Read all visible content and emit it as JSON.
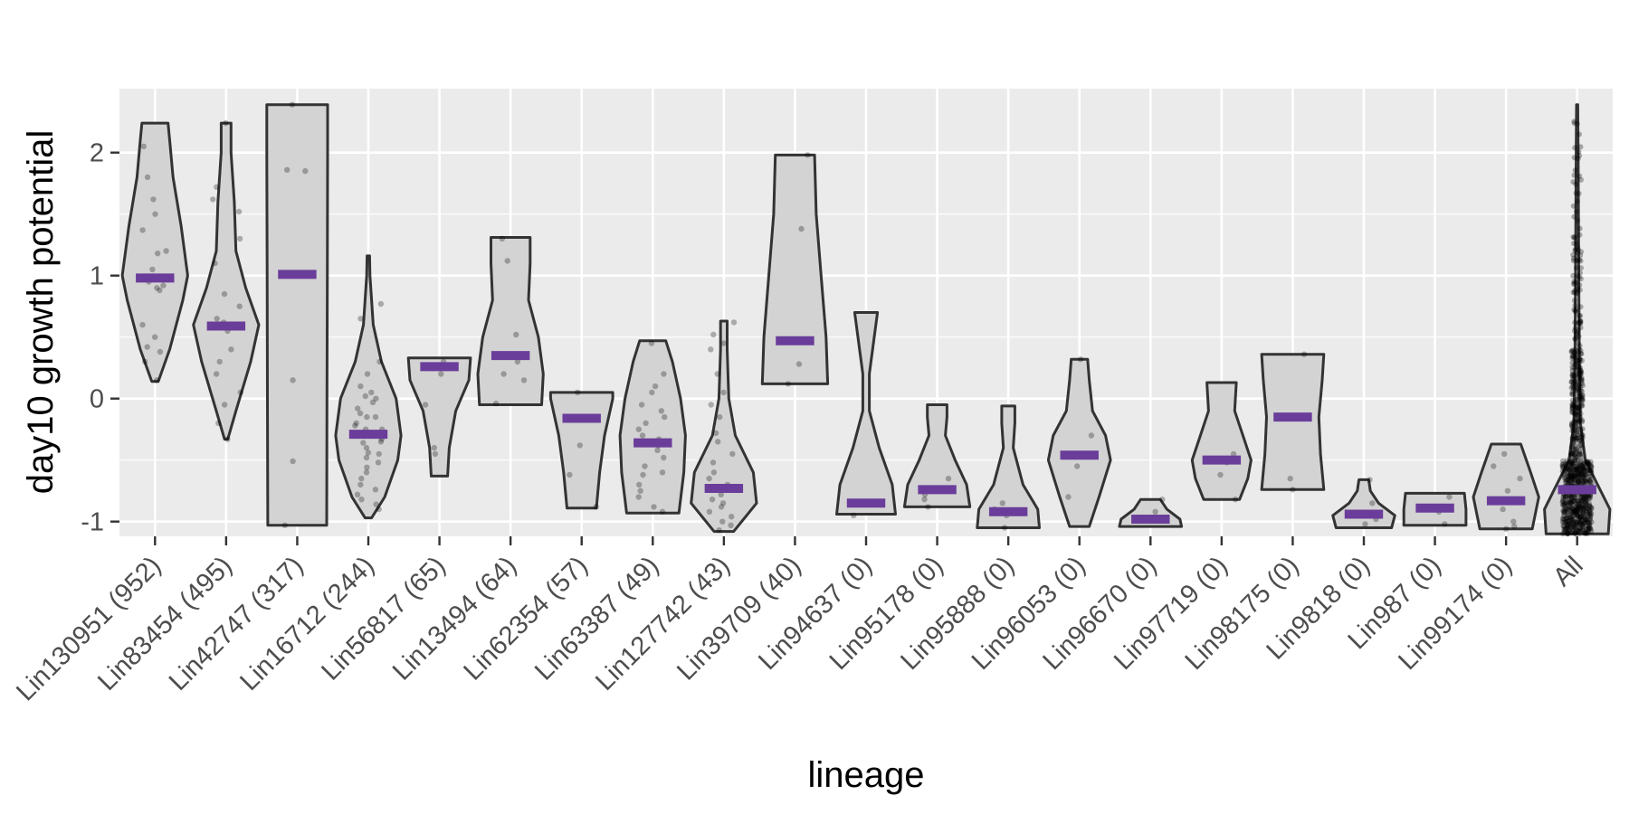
{
  "chart_data": {
    "type": "violin",
    "xlabel": "lineage",
    "ylabel": "day10 growth potential",
    "ylim": [
      -1.12,
      2.52
    ],
    "yticks": [
      -1,
      0,
      1,
      2
    ],
    "ytick_labels": [
      "-1",
      "0",
      "1",
      "2"
    ],
    "grid": true,
    "panel_background": "#ebebeb",
    "grid_color": "#ffffff",
    "violin_fill": "#d3d3d3",
    "violin_stroke": "#333333",
    "median_color": "#6a3d9a",
    "point_color": "#000000",
    "categories": [
      "Lin130951 (952)",
      "Lin83454 (495)",
      "Lin42747 (317)",
      "Lin16712 (244)",
      "Lin56817 (65)",
      "Lin13494 (64)",
      "Lin62354 (57)",
      "Lin63387 (49)",
      "Lin127742 (43)",
      "Lin39709 (40)",
      "Lin94637 (0)",
      "Lin95178 (0)",
      "Lin95888 (0)",
      "Lin96053 (0)",
      "Lin96670 (0)",
      "Lin97719 (0)",
      "Lin98175 (0)",
      "Lin9818 (0)",
      "Lin987 (0)",
      "Lin99174 (0)",
      "All"
    ],
    "medians": [
      0.98,
      0.59,
      1.01,
      -0.29,
      0.26,
      0.35,
      -0.16,
      -0.36,
      -0.73,
      0.47,
      -0.85,
      -0.74,
      -0.92,
      -0.46,
      -0.98,
      -0.5,
      -0.15,
      -0.94,
      -0.89,
      -0.83,
      -0.74
    ],
    "violins": [
      {
        "name": "Lin130951 (952)",
        "profile": [
          [
            0.14,
            0.1
          ],
          [
            0.4,
            0.45
          ],
          [
            0.8,
            0.85
          ],
          [
            1.0,
            1.0
          ],
          [
            1.4,
            0.8
          ],
          [
            1.8,
            0.55
          ],
          [
            2.1,
            0.45
          ],
          [
            2.24,
            0.4
          ]
        ]
      },
      {
        "name": "Lin83454 (495)",
        "profile": [
          [
            -0.33,
            0.05
          ],
          [
            -0.1,
            0.3
          ],
          [
            0.3,
            0.75
          ],
          [
            0.6,
            1.0
          ],
          [
            0.9,
            0.6
          ],
          [
            1.2,
            0.3
          ],
          [
            1.6,
            0.25
          ],
          [
            2.0,
            0.15
          ],
          [
            2.24,
            0.15
          ]
        ]
      },
      {
        "name": "Lin42747 (317)",
        "profile": [
          [
            -1.03,
            0.9
          ],
          [
            0.0,
            0.91
          ],
          [
            1.0,
            0.92
          ],
          [
            2.0,
            0.93
          ],
          [
            2.39,
            0.93
          ]
        ]
      },
      {
        "name": "Lin16712 (244)",
        "profile": [
          [
            -0.97,
            0.1
          ],
          [
            -0.8,
            0.5
          ],
          [
            -0.5,
            0.9
          ],
          [
            -0.3,
            1.0
          ],
          [
            0.0,
            0.85
          ],
          [
            0.3,
            0.4
          ],
          [
            0.6,
            0.15
          ],
          [
            1.0,
            0.05
          ],
          [
            1.16,
            0.04
          ]
        ]
      },
      {
        "name": "Lin56817 (65)",
        "profile": [
          [
            -0.63,
            0.25
          ],
          [
            -0.4,
            0.3
          ],
          [
            -0.1,
            0.5
          ],
          [
            0.15,
            0.9
          ],
          [
            0.33,
            0.95
          ]
        ]
      },
      {
        "name": "Lin13494 (64)",
        "profile": [
          [
            -0.05,
            0.95
          ],
          [
            0.2,
            1.0
          ],
          [
            0.5,
            0.85
          ],
          [
            0.8,
            0.55
          ],
          [
            1.1,
            0.6
          ],
          [
            1.31,
            0.6
          ]
        ]
      },
      {
        "name": "Lin62354 (57)",
        "profile": [
          [
            -0.89,
            0.45
          ],
          [
            -0.6,
            0.55
          ],
          [
            -0.3,
            0.7
          ],
          [
            0.0,
            0.95
          ],
          [
            0.05,
            0.95
          ]
        ]
      },
      {
        "name": "Lin63387 (49)",
        "profile": [
          [
            -0.93,
            0.8
          ],
          [
            -0.6,
            0.95
          ],
          [
            -0.3,
            1.0
          ],
          [
            0.0,
            0.85
          ],
          [
            0.3,
            0.6
          ],
          [
            0.47,
            0.4
          ]
        ]
      },
      {
        "name": "Lin127742 (43)",
        "profile": [
          [
            -1.08,
            0.3
          ],
          [
            -0.85,
            1.0
          ],
          [
            -0.6,
            0.9
          ],
          [
            -0.3,
            0.35
          ],
          [
            0.0,
            0.15
          ],
          [
            0.4,
            0.1
          ],
          [
            0.63,
            0.1
          ]
        ]
      },
      {
        "name": "Lin39709 (40)",
        "profile": [
          [
            0.12,
            1.0
          ],
          [
            0.5,
            0.95
          ],
          [
            1.0,
            0.8
          ],
          [
            1.5,
            0.65
          ],
          [
            1.98,
            0.6
          ]
        ]
      },
      {
        "name": "Lin94637 (0)",
        "profile": [
          [
            -0.94,
            0.9
          ],
          [
            -0.7,
            0.8
          ],
          [
            -0.4,
            0.4
          ],
          [
            -0.1,
            0.1
          ],
          [
            0.2,
            0.1
          ],
          [
            0.5,
            0.25
          ],
          [
            0.7,
            0.35
          ]
        ]
      },
      {
        "name": "Lin95178 (0)",
        "profile": [
          [
            -0.88,
            1.0
          ],
          [
            -0.7,
            0.9
          ],
          [
            -0.5,
            0.55
          ],
          [
            -0.3,
            0.25
          ],
          [
            -0.15,
            0.3
          ],
          [
            -0.05,
            0.3
          ]
        ]
      },
      {
        "name": "Lin95888 (0)",
        "profile": [
          [
            -1.05,
            0.95
          ],
          [
            -0.9,
            0.9
          ],
          [
            -0.7,
            0.45
          ],
          [
            -0.4,
            0.15
          ],
          [
            -0.2,
            0.2
          ],
          [
            -0.06,
            0.2
          ]
        ]
      },
      {
        "name": "Lin96053 (0)",
        "profile": [
          [
            -1.04,
            0.3
          ],
          [
            -0.8,
            0.6
          ],
          [
            -0.5,
            0.95
          ],
          [
            -0.3,
            0.8
          ],
          [
            -0.1,
            0.4
          ],
          [
            0.15,
            0.3
          ],
          [
            0.32,
            0.25
          ]
        ]
      },
      {
        "name": "Lin96670 (0)",
        "profile": [
          [
            -1.04,
            0.95
          ],
          [
            -0.98,
            0.9
          ],
          [
            -0.9,
            0.5
          ],
          [
            -0.82,
            0.3
          ]
        ]
      },
      {
        "name": "Lin97719 (0)",
        "profile": [
          [
            -0.82,
            0.55
          ],
          [
            -0.65,
            0.8
          ],
          [
            -0.5,
            0.9
          ],
          [
            -0.3,
            0.65
          ],
          [
            -0.1,
            0.4
          ],
          [
            0.13,
            0.45
          ]
        ]
      },
      {
        "name": "Lin98175 (0)",
        "profile": [
          [
            -0.74,
            0.95
          ],
          [
            -0.45,
            0.85
          ],
          [
            -0.15,
            0.8
          ],
          [
            0.15,
            0.9
          ],
          [
            0.36,
            0.95
          ]
        ]
      },
      {
        "name": "Lin9818 (0)",
        "profile": [
          [
            -1.05,
            0.85
          ],
          [
            -0.95,
            0.95
          ],
          [
            -0.85,
            0.45
          ],
          [
            -0.75,
            0.2
          ],
          [
            -0.66,
            0.15
          ]
        ]
      },
      {
        "name": "Lin987 (0)",
        "profile": [
          [
            -1.03,
            0.95
          ],
          [
            -0.9,
            0.95
          ],
          [
            -0.77,
            0.9
          ]
        ]
      },
      {
        "name": "Lin99174 (0)",
        "profile": [
          [
            -1.06,
            0.8
          ],
          [
            -0.8,
            1.0
          ],
          [
            -0.6,
            0.75
          ],
          [
            -0.37,
            0.45
          ]
        ]
      },
      {
        "name": "All",
        "profile": [
          [
            -1.1,
            0.95
          ],
          [
            -0.9,
            1.0
          ],
          [
            -0.74,
            0.7
          ],
          [
            -0.5,
            0.25
          ],
          [
            -0.2,
            0.1
          ],
          [
            0.3,
            0.07
          ],
          [
            1.0,
            0.05
          ],
          [
            2.0,
            0.03
          ],
          [
            2.39,
            0.02
          ]
        ]
      }
    ],
    "points": [
      [
        0.98,
        0.9,
        2.05,
        1.8,
        1.62,
        1.5,
        1.37,
        1.2,
        1.18,
        1.05,
        0.95,
        0.92,
        0.88,
        0.6,
        0.5,
        0.42,
        0.38,
        0.3,
        0.15
      ],
      [
        2.24,
        1.72,
        1.62,
        1.52,
        1.3,
        1.1,
        0.85,
        0.75,
        0.65,
        0.62,
        0.55,
        0.4,
        0.3,
        0.2,
        0.05,
        -0.05,
        -0.2,
        -0.33
      ],
      [
        2.39,
        1.86,
        1.85,
        0.15,
        -0.51,
        -1.03
      ],
      [
        0.77,
        0.65,
        0.3,
        0.2,
        0.1,
        0.05,
        0.02,
        0.0,
        -0.03,
        -0.08,
        -0.12,
        -0.15,
        -0.2,
        -0.22,
        -0.25,
        -0.28,
        -0.3,
        -0.33,
        -0.36,
        -0.4,
        -0.44,
        -0.48,
        -0.52,
        -0.56,
        -0.6,
        -0.65,
        -0.7,
        -0.74,
        -0.78,
        -0.82,
        -0.86,
        -0.9,
        -0.25,
        -0.35,
        -0.45,
        -0.15
      ],
      [
        0.3,
        0.2,
        -0.05,
        -0.4,
        -0.45
      ],
      [
        1.3,
        1.12,
        0.52,
        0.3,
        0.2,
        0.15,
        -0.04
      ],
      [
        0.05,
        -0.15,
        -0.38,
        -0.62,
        -0.88
      ],
      [
        0.45,
        0.2,
        0.1,
        0.05,
        -0.05,
        -0.1,
        -0.15,
        -0.2,
        -0.25,
        -0.3,
        -0.33,
        -0.38,
        -0.42,
        -0.48,
        -0.55,
        -0.6,
        -0.62,
        -0.7,
        -0.75,
        -0.8,
        -0.88,
        -0.92
      ],
      [
        0.62,
        0.52,
        0.45,
        0.4,
        0.2,
        0.05,
        -0.05,
        -0.15,
        -0.28,
        -0.35,
        -0.45,
        -0.52,
        -0.6,
        -0.65,
        -0.7,
        -0.72,
        -0.78,
        -0.82,
        -0.85,
        -0.88,
        -0.92,
        -0.96,
        -1.0,
        -1.03,
        -1.07
      ],
      [
        1.98,
        1.38,
        0.28,
        0.12
      ],
      [
        -0.86,
        -0.95
      ],
      [
        -0.65,
        -0.78,
        -0.82,
        -0.88
      ],
      [
        -0.85,
        -0.9,
        -0.92,
        -0.95,
        -1.05
      ],
      [
        0.32,
        -0.3,
        -0.45,
        -0.55,
        -0.8
      ],
      [
        -0.82,
        -0.92,
        -0.98
      ],
      [
        -0.45,
        -0.52,
        -0.62,
        -0.82
      ],
      [
        0.36,
        -0.65,
        -0.74
      ],
      [
        -0.66,
        -0.85,
        -0.98,
        -1.02
      ],
      [
        -0.8,
        -0.92,
        -1.02
      ],
      [
        -0.45,
        -0.55,
        -0.65,
        -0.75,
        -0.82,
        -0.9,
        -1.0,
        -1.04,
        -1.06
      ]
    ]
  }
}
